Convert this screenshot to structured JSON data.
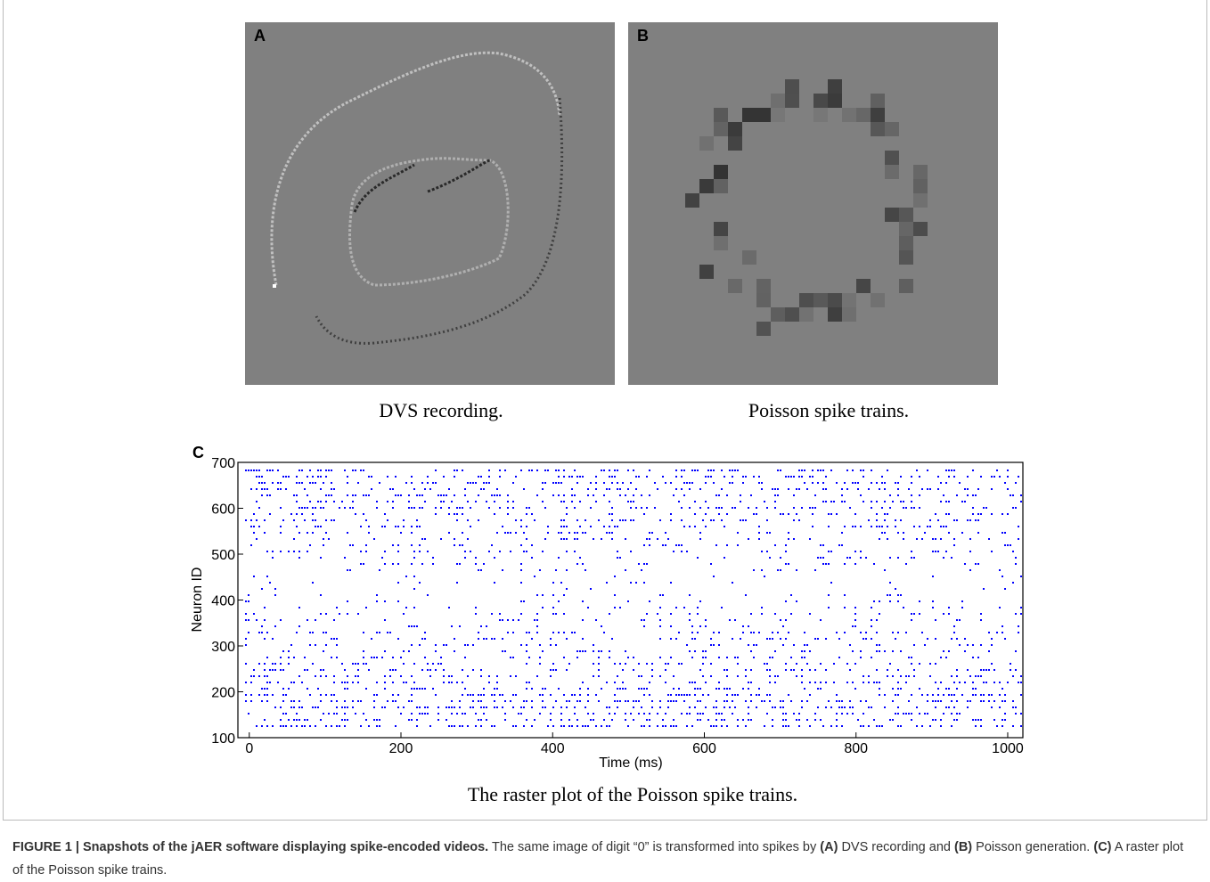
{
  "panels": [
    {
      "label": "A",
      "caption": "DVS recording."
    },
    {
      "label": "B",
      "caption": "Poisson spike trains."
    }
  ],
  "chart_data": {
    "type": "scatter",
    "panel_label": "C",
    "xlabel": "Time (ms)",
    "ylabel": "Neuron ID",
    "xlim": [
      -15,
      1020
    ],
    "ylim": [
      100,
      700
    ],
    "xticks": [
      0,
      200,
      400,
      600,
      800,
      1000
    ],
    "yticks": [
      100,
      200,
      300,
      400,
      500,
      600,
      700
    ],
    "color": "#0000ff",
    "caption": "The raster plot of the Poisson spike trains."
  },
  "figure_caption": [
    {
      "text": "FIGURE 1 | Snapshots of the jAER software displaying spike-encoded videos.",
      "bold": true
    },
    {
      "text": " The same image of digit “0” is transformed into spikes by ",
      "bold": false
    },
    {
      "text": "(A)",
      "bold": true
    },
    {
      "text": " DVS recording and ",
      "bold": false
    },
    {
      "text": "(B)",
      "bold": true
    },
    {
      "text": " Poisson generation. ",
      "bold": false
    },
    {
      "text": "(C)",
      "bold": true
    },
    {
      "text": " A raster plot of the Poisson spike trains.",
      "bold": false
    }
  ]
}
